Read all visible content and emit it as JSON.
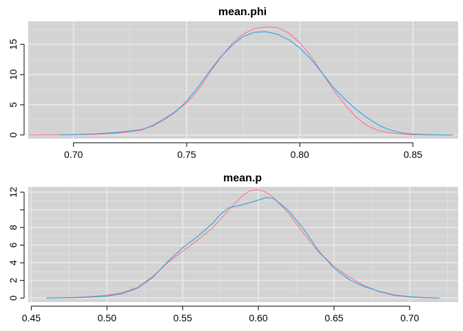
{
  "chart_data": [
    {
      "type": "line",
      "title": "mean.phi",
      "xlim": [
        0.68,
        0.87
      ],
      "ylim": [
        -0.6,
        18.8
      ],
      "xticks": [
        0.7,
        0.75,
        0.8,
        0.85
      ],
      "xtick_labels": [
        "0.70",
        "0.75",
        "0.80",
        "0.85"
      ],
      "yticks": [
        0,
        5,
        10,
        15
      ],
      "ytick_labels": [
        "0",
        "5",
        "10",
        "15"
      ],
      "grid": true,
      "series": [
        {
          "color": "#ff6f91",
          "x": [
            0.68,
            0.7,
            0.71,
            0.72,
            0.73,
            0.735,
            0.74,
            0.745,
            0.75,
            0.755,
            0.76,
            0.765,
            0.77,
            0.775,
            0.78,
            0.785,
            0.79,
            0.795,
            0.8,
            0.805,
            0.81,
            0.815,
            0.82,
            0.825,
            0.83,
            0.835,
            0.84,
            0.845,
            0.85,
            0.855,
            0.86,
            0.868
          ],
          "y": [
            0.0,
            0.05,
            0.1,
            0.3,
            0.8,
            1.6,
            2.7,
            3.9,
            5.3,
            7.4,
            10.2,
            12.8,
            15.1,
            16.7,
            17.6,
            17.9,
            17.8,
            16.9,
            15.3,
            13.0,
            10.2,
            7.4,
            5.0,
            2.9,
            1.5,
            0.7,
            0.35,
            0.15,
            0.05,
            0.02,
            0.01,
            0.0
          ]
        },
        {
          "color": "#2aa1e3",
          "x": [
            0.694,
            0.7,
            0.71,
            0.72,
            0.73,
            0.735,
            0.74,
            0.745,
            0.75,
            0.755,
            0.76,
            0.765,
            0.77,
            0.775,
            0.78,
            0.785,
            0.79,
            0.795,
            0.8,
            0.805,
            0.81,
            0.815,
            0.82,
            0.825,
            0.83,
            0.835,
            0.84,
            0.845,
            0.85,
            0.855,
            0.86,
            0.867
          ],
          "y": [
            0.0,
            0.05,
            0.2,
            0.45,
            0.9,
            1.5,
            2.5,
            3.8,
            5.6,
            7.9,
            10.5,
            12.9,
            14.8,
            16.3,
            17.0,
            17.1,
            16.7,
            15.8,
            14.4,
            12.5,
            10.2,
            7.8,
            5.9,
            4.2,
            2.8,
            1.6,
            0.8,
            0.35,
            0.15,
            0.07,
            0.03,
            0.0
          ]
        }
      ]
    },
    {
      "type": "line",
      "title": "mean.p",
      "xlim": [
        0.448,
        0.732
      ],
      "ylim": [
        -0.45,
        12.6
      ],
      "xticks": [
        0.45,
        0.5,
        0.55,
        0.6,
        0.65,
        0.7
      ],
      "xtick_labels": [
        "0.45",
        "0.50",
        "0.55",
        "0.60",
        "0.65",
        "0.70"
      ],
      "yticks": [
        0,
        2,
        4,
        6,
        8,
        10,
        12
      ],
      "ytick_labels": [
        "0",
        "2",
        "4",
        "6",
        "8",
        "",
        "12"
      ],
      "grid": true,
      "series": [
        {
          "color": "#ff6f91",
          "x": [
            0.46,
            0.48,
            0.49,
            0.5,
            0.51,
            0.52,
            0.53,
            0.54,
            0.55,
            0.56,
            0.57,
            0.58,
            0.59,
            0.595,
            0.6,
            0.605,
            0.61,
            0.62,
            0.63,
            0.64,
            0.65,
            0.66,
            0.67,
            0.68,
            0.69,
            0.7,
            0.71,
            0.718
          ],
          "y": [
            0.0,
            0.08,
            0.18,
            0.32,
            0.6,
            1.2,
            2.4,
            4.0,
            5.3,
            6.6,
            8.0,
            9.9,
            11.7,
            12.2,
            12.3,
            12.0,
            11.4,
            9.6,
            7.3,
            5.2,
            3.6,
            2.4,
            1.4,
            0.7,
            0.3,
            0.12,
            0.04,
            0.0
          ]
        },
        {
          "color": "#2aa1e3",
          "x": [
            0.46,
            0.48,
            0.49,
            0.5,
            0.51,
            0.52,
            0.53,
            0.54,
            0.55,
            0.56,
            0.57,
            0.575,
            0.58,
            0.59,
            0.6,
            0.605,
            0.61,
            0.62,
            0.63,
            0.64,
            0.65,
            0.66,
            0.67,
            0.68,
            0.69,
            0.7,
            0.71,
            0.72
          ],
          "y": [
            0.0,
            0.06,
            0.12,
            0.22,
            0.5,
            1.1,
            2.3,
            4.1,
            5.7,
            7.0,
            8.5,
            9.5,
            10.2,
            10.6,
            11.1,
            11.4,
            11.3,
            9.9,
            7.8,
            5.3,
            3.4,
            2.1,
            1.3,
            0.75,
            0.35,
            0.15,
            0.05,
            0.0
          ]
        }
      ]
    }
  ]
}
